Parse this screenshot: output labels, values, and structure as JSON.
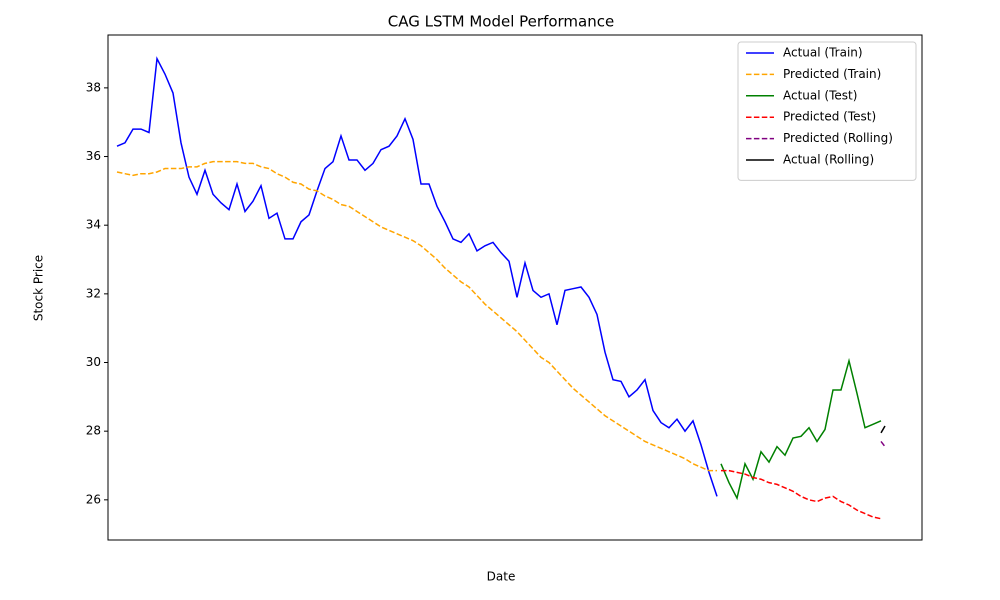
{
  "chart_data": {
    "type": "line",
    "title": "CAG LSTM Model Performance",
    "x_label": "Date",
    "y_label": "Stock Price",
    "xlim": [
      -1.125,
      100.625
    ],
    "ylim": [
      24.83,
      39.54
    ],
    "yticks": [
      26,
      28,
      30,
      32,
      34,
      36,
      38
    ],
    "grid": false,
    "legend": "upper right",
    "series": [
      {
        "name": "Actual (Train)",
        "color": "#0000ff",
        "dashed": false,
        "x": [
          0,
          1,
          2,
          3,
          4,
          5,
          6,
          7,
          8,
          9,
          10,
          11,
          12,
          13,
          14,
          15,
          16,
          17,
          18,
          19,
          20,
          21,
          22,
          23,
          24,
          25,
          26,
          27,
          28,
          29,
          30,
          31,
          32,
          33,
          34,
          35,
          36,
          37,
          38,
          39,
          40,
          41,
          42,
          43,
          44,
          45,
          46,
          47,
          48,
          49,
          50,
          51,
          52,
          53,
          54,
          55,
          56,
          57,
          58,
          59,
          60,
          61,
          62,
          63,
          64,
          65,
          66,
          67,
          68,
          69,
          70,
          71,
          72,
          73,
          74,
          75
        ],
        "values": [
          36.3,
          36.4,
          36.8,
          36.8,
          36.7,
          38.85,
          38.4,
          37.85,
          36.4,
          35.4,
          34.9,
          35.6,
          34.9,
          34.65,
          34.45,
          35.2,
          34.4,
          34.7,
          35.15,
          34.2,
          34.35,
          33.6,
          33.6,
          34.1,
          34.3,
          35.0,
          35.65,
          35.85,
          36.6,
          35.9,
          35.9,
          35.6,
          35.8,
          36.2,
          36.3,
          36.6,
          37.1,
          36.5,
          35.2,
          35.2,
          34.55,
          34.1,
          33.6,
          33.5,
          33.75,
          33.25,
          33.4,
          33.5,
          33.2,
          32.95,
          31.9,
          32.9,
          32.1,
          31.9,
          32.0,
          31.1,
          32.1,
          32.15,
          32.2,
          31.9,
          31.4,
          30.3,
          29.5,
          29.45,
          29.0,
          29.2,
          29.5,
          28.6,
          28.25,
          28.1,
          28.35,
          28.0,
          28.3,
          27.6,
          26.8,
          26.1
        ]
      },
      {
        "name": "Predicted (Train)",
        "color": "#ffa500",
        "dashed": true,
        "x": [
          0,
          1,
          2,
          3,
          4,
          5,
          6,
          7,
          8,
          9,
          10,
          11,
          12,
          13,
          14,
          15,
          16,
          17,
          18,
          19,
          20,
          21,
          22,
          23,
          24,
          25,
          26,
          27,
          28,
          29,
          30,
          31,
          32,
          33,
          34,
          35,
          36,
          37,
          38,
          39,
          40,
          41,
          42,
          43,
          44,
          45,
          46,
          47,
          48,
          49,
          50,
          51,
          52,
          53,
          54,
          55,
          56,
          57,
          58,
          59,
          60,
          61,
          62,
          63,
          64,
          65,
          66,
          67,
          68,
          69,
          70,
          71,
          72,
          73,
          74,
          75
        ],
        "values": [
          35.55,
          35.5,
          35.45,
          35.5,
          35.5,
          35.55,
          35.65,
          35.65,
          35.65,
          35.7,
          35.7,
          35.8,
          35.85,
          35.85,
          35.85,
          35.85,
          35.8,
          35.8,
          35.7,
          35.65,
          35.5,
          35.4,
          35.25,
          35.2,
          35.05,
          35.0,
          34.85,
          34.75,
          34.6,
          34.55,
          34.4,
          34.25,
          34.1,
          33.95,
          33.85,
          33.75,
          33.65,
          33.55,
          33.4,
          33.2,
          33.0,
          32.75,
          32.55,
          32.35,
          32.2,
          31.95,
          31.7,
          31.5,
          31.3,
          31.1,
          30.9,
          30.65,
          30.4,
          30.15,
          30.0,
          29.75,
          29.5,
          29.25,
          29.05,
          28.85,
          28.65,
          28.45,
          28.3,
          28.15,
          28.0,
          27.85,
          27.7,
          27.6,
          27.5,
          27.4,
          27.3,
          27.2,
          27.05,
          26.95,
          26.85,
          26.85
        ]
      },
      {
        "name": "Actual (Test)",
        "color": "#008000",
        "dashed": false,
        "x": [
          75.5,
          76.5,
          77.5,
          78.5,
          79.5,
          80.5,
          81.5,
          82.5,
          83.5,
          84.5,
          85.5,
          86.5,
          87.5,
          88.5,
          89.5,
          90.5,
          91.5,
          92.5,
          93.5,
          94.5,
          95.5
        ],
        "values": [
          27.05,
          26.5,
          26.05,
          27.05,
          26.6,
          27.4,
          27.1,
          27.55,
          27.3,
          27.8,
          27.85,
          28.1,
          27.7,
          28.05,
          29.2,
          29.2,
          30.05,
          29.1,
          28.1,
          28.2,
          28.3
        ]
      },
      {
        "name": "Predicted (Test)",
        "color": "#ff0000",
        "dashed": true,
        "x": [
          75.5,
          76.5,
          77.5,
          78.5,
          79.5,
          80.5,
          81.5,
          82.5,
          83.5,
          84.5,
          85.5,
          86.5,
          87.5,
          88.5,
          89.5,
          90.5,
          91.5,
          92.5,
          93.5,
          94.5,
          95.5
        ],
        "values": [
          26.85,
          26.85,
          26.8,
          26.75,
          26.65,
          26.6,
          26.5,
          26.45,
          26.35,
          26.25,
          26.1,
          26.0,
          25.95,
          26.05,
          26.1,
          25.95,
          25.85,
          25.7,
          25.6,
          25.5,
          25.45
        ]
      },
      {
        "name": "Predicted (Rolling)",
        "color": "#800080",
        "dashed": true,
        "x": [
          95.5,
          96
        ],
        "values": [
          27.7,
          27.55
        ]
      },
      {
        "name": "Actual (Rolling)",
        "color": "#000000",
        "dashed": false,
        "x": [
          95.5,
          96
        ],
        "values": [
          27.95,
          28.15
        ]
      }
    ]
  }
}
